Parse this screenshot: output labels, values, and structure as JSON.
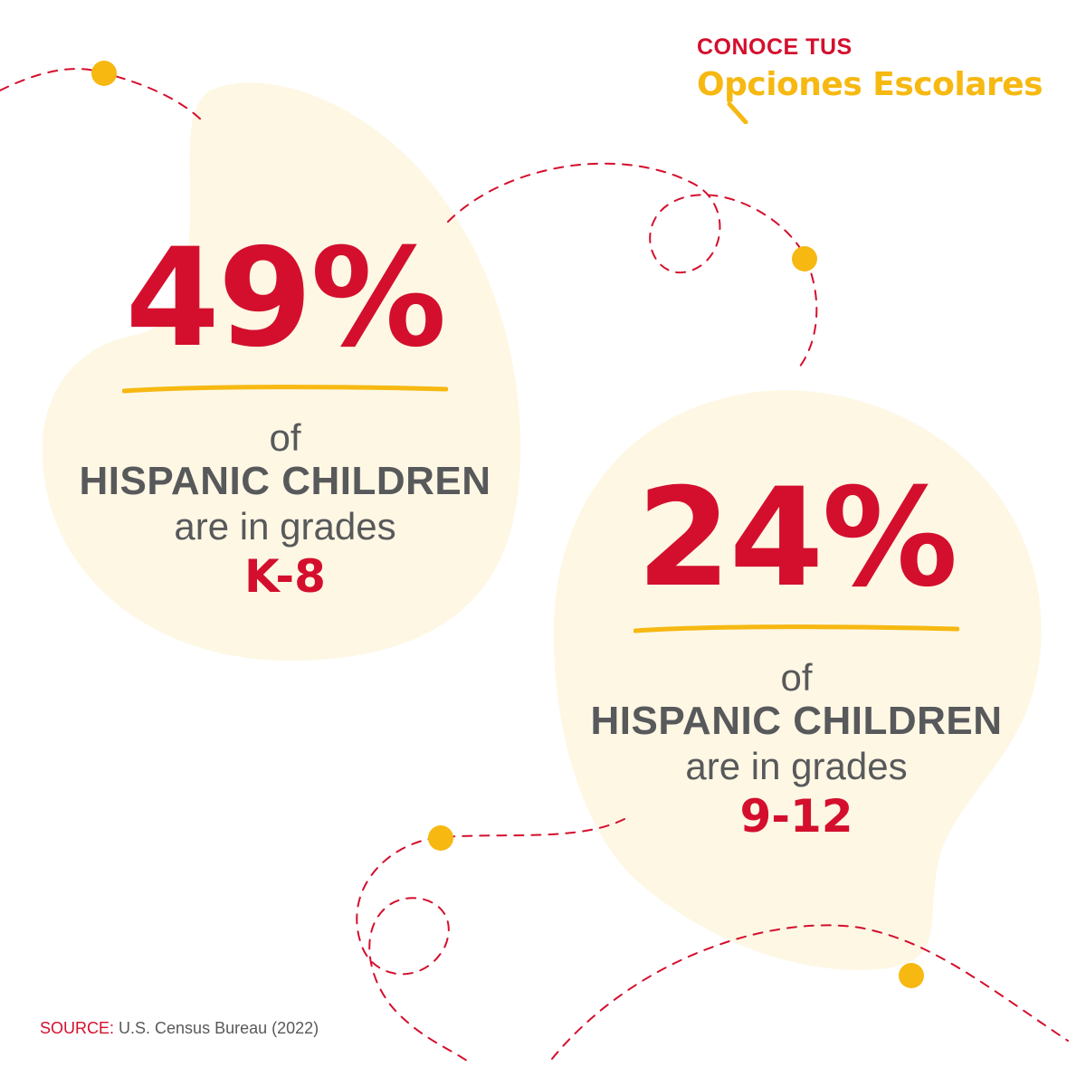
{
  "logo": {
    "line1": "CONOCE TUS",
    "line2": "Opciones Escolares",
    "icon": "magnifier-icon"
  },
  "stat_1": {
    "percent": "49%",
    "of": "of",
    "subject": "HISPANIC CHILDREN",
    "phrase": "are in grades",
    "grades": "K-8"
  },
  "stat_2": {
    "percent": "24%",
    "of": "of",
    "subject": "HISPANIC CHILDREN",
    "phrase": "are in grades",
    "grades": "9-12"
  },
  "source": {
    "label": "SOURCE:",
    "text": "U.S. Census Bureau (2022)"
  },
  "colors": {
    "red": "#d40f2d",
    "gray": "#58595b",
    "yellow": "#f6b811",
    "blob": "#fdf7e4"
  }
}
